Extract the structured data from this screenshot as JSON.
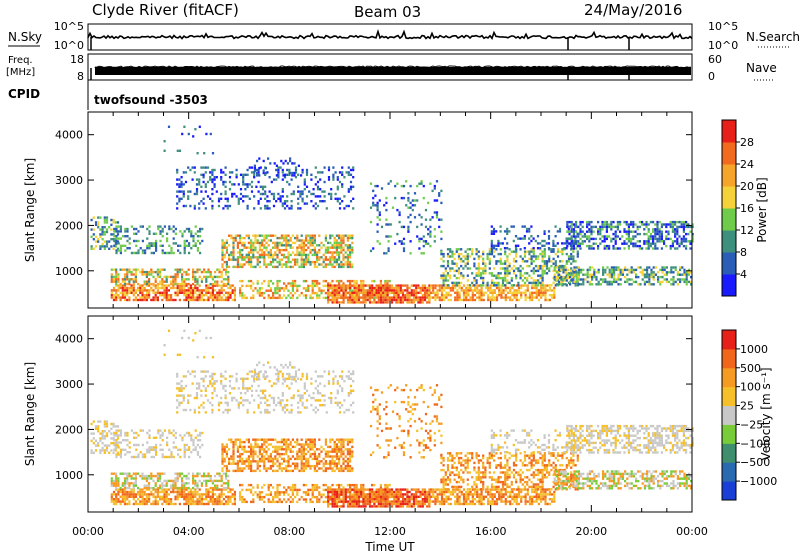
{
  "header": {
    "station": "Clyde River (fitACF)",
    "beam": "Beam 03",
    "date": "24/May/2016"
  },
  "panels": {
    "nsky": {
      "left_label": "N.Sky",
      "right_label": "N.Search",
      "left_ticks": [
        "10^5",
        "10^0"
      ],
      "right_ticks": [
        "10^5",
        "10^0"
      ]
    },
    "freq": {
      "left_label_line1": "Freq.",
      "left_label_line2": "[MHz]",
      "right_label": "Nave",
      "left_ticks": [
        "18",
        "8"
      ],
      "right_ticks": [
        "60",
        "0"
      ]
    },
    "cpid": {
      "left_label": "CPID",
      "program": "twofsound -3503"
    }
  },
  "chart_data": [
    {
      "type": "heatmap",
      "name": "power",
      "ylabel": "Slant Range [km]",
      "xlabel": "",
      "x_ticks": [
        "00:00",
        "04:00",
        "08:00",
        "12:00",
        "16:00",
        "20:00",
        "00:00"
      ],
      "y_ticks": [
        1000,
        2000,
        3000,
        4000
      ],
      "ylim": [
        180,
        4500
      ],
      "xlim_hours": [
        0,
        24
      ],
      "colorbar": {
        "label": "Power [dB]",
        "ticks": [
          "4",
          "8",
          "12",
          "16",
          "20",
          "24",
          "28"
        ],
        "colors": [
          "#1a1aff",
          "#2a5db5",
          "#3f8f7e",
          "#6fcc4a",
          "#f5d23a",
          "#f5a52a",
          "#f26a1e",
          "#e8201a"
        ]
      }
    },
    {
      "type": "heatmap",
      "name": "velocity",
      "ylabel": "Slant Range [km]",
      "xlabel": "Time UT",
      "x_ticks": [
        "00:00",
        "04:00",
        "08:00",
        "12:00",
        "16:00",
        "20:00",
        "00:00"
      ],
      "y_ticks": [
        1000,
        2000,
        3000,
        4000
      ],
      "ylim": [
        180,
        4500
      ],
      "xlim_hours": [
        0,
        24
      ],
      "colorbar": {
        "label": "Velocity [m s⁻¹]",
        "ticks": [
          "1000",
          "500",
          "100",
          "25",
          "−25",
          "−100",
          "−500",
          "−1000"
        ],
        "colors": [
          "#1a3fd6",
          "#2a6ab0",
          "#3f8f6e",
          "#78cc3a",
          "#c8c8c8",
          "#f5c02a",
          "#f59a22",
          "#f0661a",
          "#e8201a"
        ]
      }
    }
  ]
}
